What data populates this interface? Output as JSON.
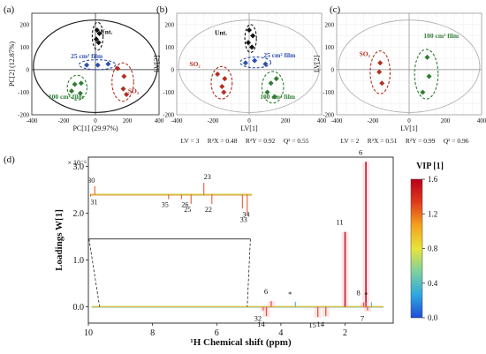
{
  "chart_data": [
    {
      "panel": "(a)",
      "type": "scatter",
      "xlabel": "PC[1] (29.97%)",
      "ylabel": "PC[2] (12.87%)",
      "xlim": [
        -400,
        400
      ],
      "ylim": [
        -200,
        250
      ],
      "xticks": [
        "-400",
        "-200",
        "0",
        "200",
        "400"
      ],
      "yticks": [
        "-200",
        "-100",
        "0",
        "100",
        "200"
      ],
      "groups": [
        {
          "name": "Unt.",
          "color": "#111111",
          "points": [
            [
              10,
              175
            ],
            [
              25,
              160
            ],
            [
              5,
              135
            ],
            [
              20,
              120
            ]
          ]
        },
        {
          "name": "25 cm² film",
          "color": "#2e4fb0",
          "points": [
            [
              -55,
              20
            ],
            [
              15,
              20
            ],
            [
              80,
              25
            ]
          ]
        },
        {
          "name": "100 cm² film",
          "color": "#2e7d32",
          "points": [
            [
              -130,
              -65
            ],
            [
              -90,
              -60
            ],
            [
              -150,
              -95
            ],
            [
              -95,
              -105
            ]
          ]
        },
        {
          "name": "SO₂",
          "color": "#b03020",
          "points": [
            [
              140,
              5
            ],
            [
              180,
              -30
            ],
            [
              175,
              -85
            ],
            [
              195,
              -110
            ]
          ]
        }
      ]
    },
    {
      "panel": "(b)",
      "type": "scatter",
      "xlabel": "LV[1]",
      "ylabel": "LV[2]",
      "xlim": [
        -400,
        400
      ],
      "ylim": [
        -200,
        250
      ],
      "xticks": [
        "-400",
        "-200",
        "0",
        "200",
        "400"
      ],
      "yticks": [
        "-200",
        "-100",
        "0",
        "100",
        "200"
      ],
      "groups": [
        {
          "name": "Unt.",
          "color": "#111111",
          "points": [
            [
              0,
              175
            ],
            [
              20,
              150
            ],
            [
              -5,
              120
            ],
            [
              15,
              100
            ]
          ]
        },
        {
          "name": "25 cm² film",
          "color": "#2e4fb0",
          "points": [
            [
              -20,
              30
            ],
            [
              30,
              40
            ],
            [
              90,
              25
            ]
          ]
        },
        {
          "name": "SO₂",
          "color": "#b03020",
          "points": [
            [
              -175,
              -20
            ],
            [
              -135,
              -40
            ],
            [
              -150,
              -75
            ],
            [
              -140,
              -100
            ]
          ]
        },
        {
          "name": "100 cm² film",
          "color": "#2e7d32",
          "points": [
            [
              150,
              -40
            ],
            [
              120,
              -60
            ],
            [
              100,
              -100
            ],
            [
              140,
              -120
            ]
          ]
        }
      ],
      "stats": "LV = 3     R²X = 0.48     R²Y = 0.92     Q² = 0.55"
    },
    {
      "panel": "(c)",
      "type": "scatter",
      "xlabel": "LV[1]",
      "ylabel": "LV[2]",
      "xlim": [
        -400,
        400
      ],
      "ylim": [
        -200,
        250
      ],
      "xticks": [
        "-400",
        "-200",
        "0",
        "200",
        "400"
      ],
      "yticks": [
        "-200",
        "-100",
        "0",
        "100",
        "200"
      ],
      "groups": [
        {
          "name": "SO₂",
          "color": "#b03020",
          "points": [
            [
              -160,
              30
            ],
            [
              -165,
              -10
            ],
            [
              -150,
              -60
            ]
          ]
        },
        {
          "name": "100 cm² film",
          "color": "#2e7d32",
          "points": [
            [
              100,
              55
            ],
            [
              110,
              -30
            ],
            [
              75,
              -100
            ]
          ]
        }
      ],
      "stats": "LV = 2     R²X = 0.51     R²Y = 0.99     Q² = 0.96"
    },
    {
      "panel": "(d)",
      "type": "line",
      "xlabel": "¹H Chemical shift (ppm)",
      "ylabel": "Loadings W[1]",
      "exponent": "× 10⁻⁶",
      "xlim": [
        10,
        0.5
      ],
      "ylim": [
        -0.35,
        3.2
      ],
      "xticks": [
        "10",
        "8",
        "6",
        "4",
        "2"
      ],
      "yticks": [
        "0.0",
        "1.0",
        "2.0",
        "3.0"
      ],
      "colorbar": {
        "title": "VIP [1]",
        "min": 0.0,
        "max": 1.6,
        "ticks": [
          "0.0",
          "0.4",
          "0.8",
          "1.2",
          "1.6"
        ],
        "colors": [
          "#1f4bd8",
          "#2fa8e0",
          "#7fd0a0",
          "#e8e43a",
          "#f4a21e",
          "#e03a1c",
          "#b8001a"
        ]
      },
      "main_peaks": [
        {
          "label": "6",
          "ppm": 4.3,
          "value": 0.12
        },
        {
          "label": "*",
          "ppm": 3.55,
          "value": 0.07
        },
        {
          "label": "32",
          "ppm": 4.55,
          "value": -0.08
        },
        {
          "label": "14",
          "ppm": 4.45,
          "value": -0.2
        },
        {
          "label": "15",
          "ppm": 2.85,
          "value": -0.22
        },
        {
          "label": "14",
          "ppm": 2.6,
          "value": -0.2
        },
        {
          "label": "11",
          "ppm": 2.0,
          "value": 1.6
        },
        {
          "label": "6",
          "ppm": 1.35,
          "value": 3.1
        },
        {
          "label": "8",
          "ppm": 1.42,
          "value": 0.09
        },
        {
          "label": "7",
          "ppm": 1.3,
          "value": -0.08
        },
        {
          "label": "*",
          "ppm": 1.18,
          "value": 0.06
        }
      ],
      "inset_peaks": [
        {
          "label": "30",
          "ppm": 9.8,
          "value": 2.58
        },
        {
          "label": "31",
          "ppm": 9.93,
          "value": 2.36
        },
        {
          "label": "35",
          "ppm": 7.5,
          "value": 2.3
        },
        {
          "label": "26",
          "ppm": 7.1,
          "value": 2.3
        },
        {
          "label": "25",
          "ppm": 6.8,
          "value": 2.2
        },
        {
          "label": "23",
          "ppm": 6.4,
          "value": 2.65
        },
        {
          "label": "22",
          "ppm": 6.15,
          "value": 2.2
        },
        {
          "label": "34",
          "ppm": 5.2,
          "value": 2.1
        },
        {
          "label": "33",
          "ppm": 5.05,
          "value": 1.98
        }
      ]
    }
  ]
}
